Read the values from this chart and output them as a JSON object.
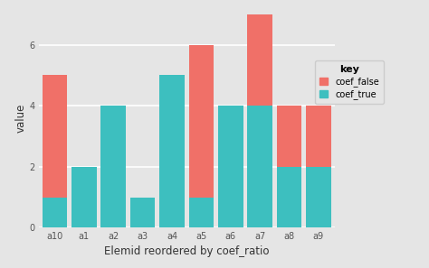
{
  "categories": [
    "a10",
    "a1",
    "a2",
    "a3",
    "a4",
    "a5",
    "a6",
    "a7",
    "a8",
    "a9"
  ],
  "coef_true": [
    1.0,
    2.0,
    4.0,
    1.0,
    5.0,
    1.0,
    4.0,
    4.0,
    2.0,
    2.0
  ],
  "coef_false": [
    4.0,
    0.0,
    0.0,
    0.0,
    0.0,
    5.0,
    0.0,
    3.0,
    2.0,
    2.0
  ],
  "color_false": "#f07068",
  "color_true": "#3dbfbf",
  "xlabel": "Elemid reordered by coef_ratio",
  "ylabel": "value",
  "legend_title": "key",
  "legend_labels": [
    "coef_false",
    "coef_true"
  ],
  "ylim": [
    0,
    7.2
  ],
  "yticks": [
    0,
    2,
    4,
    6
  ],
  "bg_color": "#e5e5e5",
  "plot_bg_color": "#e5e5e5",
  "grid_color": "#ffffff",
  "bar_width": 0.85
}
